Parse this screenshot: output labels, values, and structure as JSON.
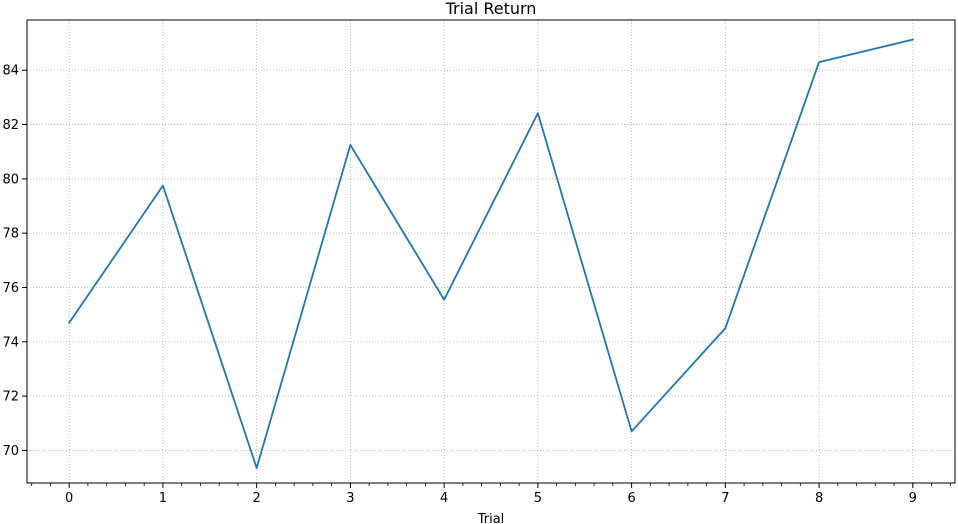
{
  "chart_data": {
    "type": "line",
    "title": "Trial Return",
    "xlabel": "Trial",
    "ylabel": "",
    "x": [
      0,
      1,
      2,
      3,
      4,
      5,
      6,
      7,
      8,
      9
    ],
    "series": [
      {
        "values": [
          74.7,
          79.75,
          69.35,
          81.25,
          75.55,
          82.42,
          70.7,
          74.5,
          84.3,
          85.13
        ],
        "color": "#1f77b4"
      }
    ],
    "xlim": [
      -0.45,
      9.45
    ],
    "ylim": [
      68.8,
      85.85
    ],
    "xticks": [
      0,
      1,
      2,
      3,
      4,
      5,
      6,
      7,
      8,
      9
    ],
    "yticks": [
      70,
      72,
      74,
      76,
      78,
      80,
      82,
      84
    ],
    "minor_xtick_step": 0.2,
    "grid": true,
    "grid_style": "dotted",
    "grid_color": "#b0b0b0",
    "legend": false
  }
}
